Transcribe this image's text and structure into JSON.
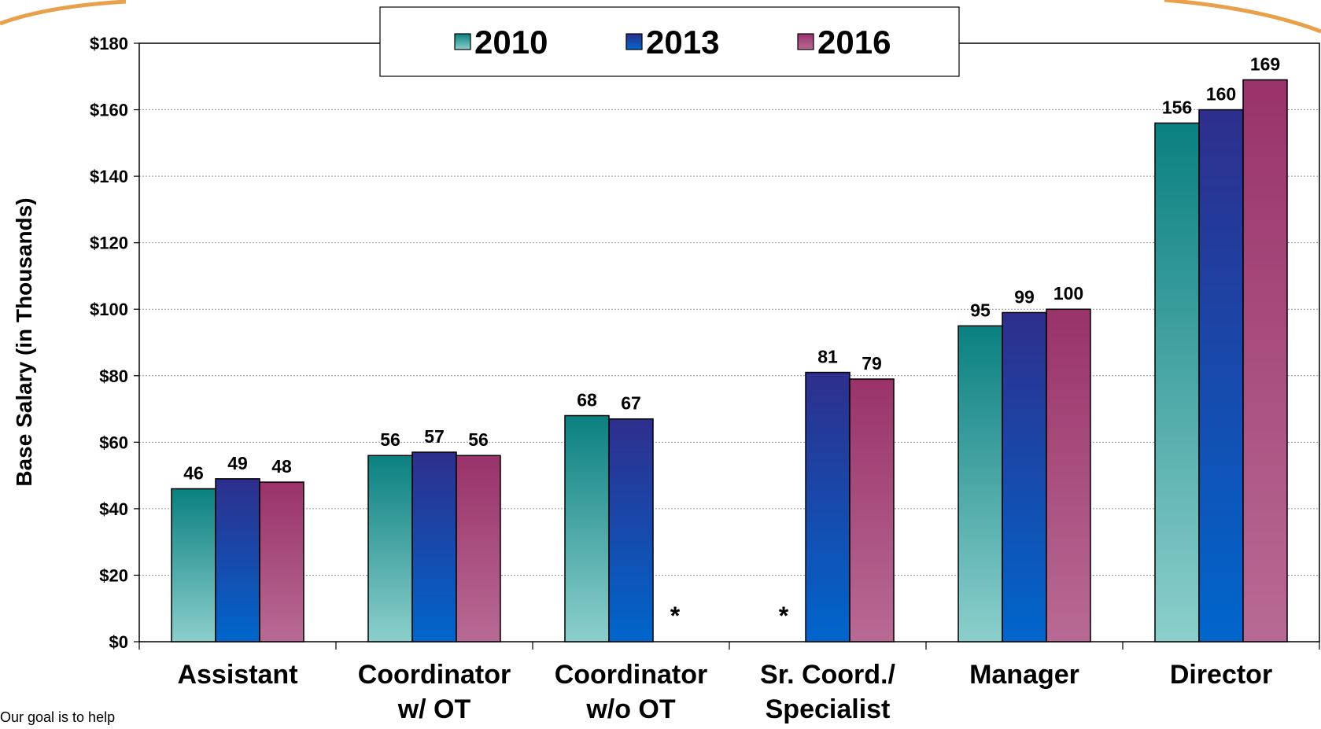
{
  "chart_data": {
    "type": "bar",
    "y_axis_label": "Base Salary (in Thousands)",
    "categories": [
      [
        "Assistant"
      ],
      [
        "Coordinator",
        "w/ OT"
      ],
      [
        "Coordinator",
        "w/o OT"
      ],
      [
        "Sr. Coord./",
        "Specialist"
      ],
      [
        "Manager"
      ],
      [
        "Director"
      ]
    ],
    "series": [
      {
        "name": "2010",
        "color": "#0a8080",
        "values": [
          46,
          56,
          68,
          null,
          95,
          156
        ],
        "value_labels": [
          "46",
          "56",
          "68",
          "*",
          "95",
          "156"
        ]
      },
      {
        "name": "2013",
        "color": "#2e2e8c",
        "values": [
          49,
          57,
          67,
          81,
          99,
          160
        ],
        "value_labels": [
          "49",
          "57",
          "67",
          "81",
          "99",
          "160"
        ]
      },
      {
        "name": "2016",
        "color": "#99336a",
        "values": [
          48,
          56,
          null,
          79,
          100,
          169
        ],
        "value_labels": [
          "48",
          "56",
          "*",
          "79",
          "100",
          "169"
        ]
      }
    ],
    "ylim": [
      0,
      180
    ],
    "yticks": [
      {
        "value": 0,
        "label": "$0"
      },
      {
        "value": 20,
        "label": "$20"
      },
      {
        "value": 40,
        "label": "$40"
      },
      {
        "value": 60,
        "label": "$60"
      },
      {
        "value": 80,
        "label": "$80"
      },
      {
        "value": 100,
        "label": "$100"
      },
      {
        "value": 120,
        "label": "$120"
      },
      {
        "value": 140,
        "label": "$140"
      },
      {
        "value": 160,
        "label": "$160"
      },
      {
        "value": 180,
        "label": "$180"
      }
    ],
    "grid": true,
    "legend": "top"
  },
  "footer_text": "Our goal is to help"
}
